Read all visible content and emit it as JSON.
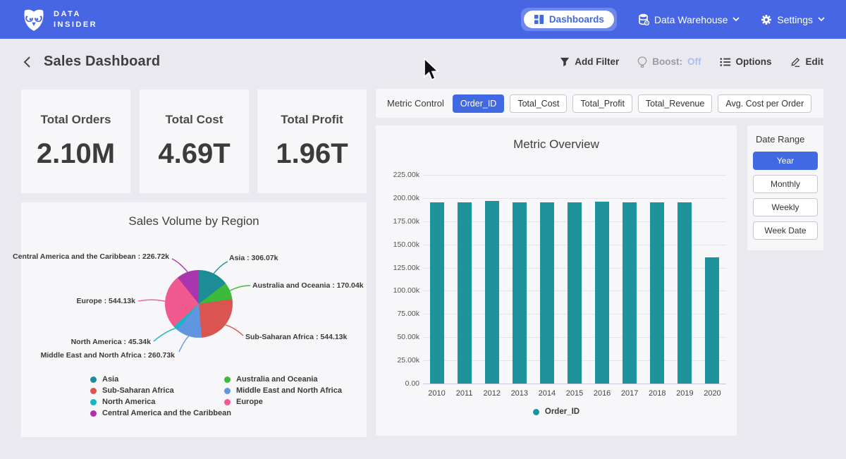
{
  "colors": {
    "navbar_blue": "#4666e4",
    "accent_blue": "#4169e1",
    "body_bg": "#eae9f0",
    "card_bg": "#f7f6f8",
    "bar_teal": "#1f939c",
    "boost_off_blue": "#a9c0f2"
  },
  "navbar": {
    "logo_line1": "DATA",
    "logo_line2": "INSIDER",
    "dashboards": "Dashboards",
    "data_warehouse": "Data Warehouse",
    "settings": "Settings"
  },
  "header": {
    "title": "Sales Dashboard",
    "add_filter": "Add Filter",
    "boost_label": "Boost:",
    "boost_value": "Off",
    "options": "Options",
    "edit": "Edit"
  },
  "kpis": [
    {
      "label": "Total Orders",
      "value": "2.10M"
    },
    {
      "label": "Total Cost",
      "value": "4.69T"
    },
    {
      "label": "Total Profit",
      "value": "1.96T"
    }
  ],
  "metric_control": {
    "label": "Metric Control",
    "buttons": [
      {
        "label": "Order_ID",
        "active": true
      },
      {
        "label": "Total_Cost",
        "active": false
      },
      {
        "label": "Total_Profit",
        "active": false
      },
      {
        "label": "Total_Revenue",
        "active": false
      },
      {
        "label": "Avg. Cost per Order",
        "active": false
      }
    ]
  },
  "date_range": {
    "label": "Date Range",
    "buttons": [
      {
        "label": "Year",
        "active": true
      },
      {
        "label": "Monthly",
        "active": false
      },
      {
        "label": "Weekly",
        "active": false
      },
      {
        "label": "Week Date",
        "active": false
      }
    ]
  },
  "chart_data": [
    {
      "type": "pie",
      "title": "Sales Volume by Region",
      "unit": "k",
      "slices": [
        {
          "label": "Asia",
          "value": 306.07,
          "display": "Asia : 306.07k",
          "color": "#1c8d96"
        },
        {
          "label": "Australia and Oceania",
          "value": 170.04,
          "display": "Australia and Oceania : 170.04k",
          "color": "#3dba3c"
        },
        {
          "label": "Sub-Saharan Africa",
          "value": 544.13,
          "display": "Sub-Saharan Africa : 544.13k",
          "color": "#da5452"
        },
        {
          "label": "Middle East and North Africa",
          "value": 260.73,
          "display": "Middle East and North Africa : 260.73k",
          "color": "#6095e0"
        },
        {
          "label": "North America",
          "value": 45.34,
          "display": "North America : 45.34k",
          "color": "#1ab4c4"
        },
        {
          "label": "Europe",
          "value": 544.13,
          "display": "Europe : 544.13k",
          "color": "#f2598f"
        },
        {
          "label": "Central America and the Caribbean",
          "value": 226.72,
          "display": "Central America and the Caribbean : 226.72k",
          "color": "#a936ae"
        }
      ],
      "legend_left": [
        "Asia",
        "Sub-Saharan Africa",
        "North America",
        "Central America and the Caribbean"
      ],
      "legend_right": [
        "Australia and Oceania",
        "Middle East and North Africa",
        "Europe"
      ],
      "legend_position": "bottom"
    },
    {
      "type": "bar",
      "title": "Metric Overview",
      "series_name": "Order_ID",
      "color": "#1f939c",
      "categories": [
        "2010",
        "2011",
        "2012",
        "2013",
        "2014",
        "2015",
        "2016",
        "2017",
        "2018",
        "2019",
        "2020"
      ],
      "values_k": [
        195.6,
        195.5,
        196.5,
        195.5,
        195.4,
        195.5,
        196.4,
        195.5,
        195.4,
        195.6,
        136.2
      ],
      "unit": "k",
      "ylim_k": [
        0,
        237
      ],
      "y_tick_values_k": [
        225,
        200,
        175,
        150,
        125,
        100,
        75,
        50,
        25,
        0
      ],
      "y_tick_labels": [
        "225.00k",
        "200.00k",
        "175.00k",
        "150.00k",
        "125.00k",
        "100.00k",
        "75.00k",
        "50.00k",
        "25.00k",
        "0.00"
      ],
      "legend": "Order_ID",
      "grid": true,
      "legend_position": "bottom"
    }
  ]
}
